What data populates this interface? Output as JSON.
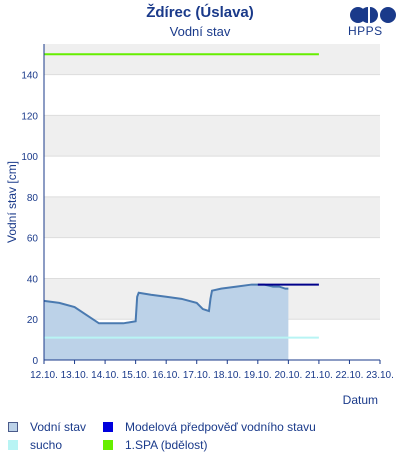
{
  "header": {
    "title": "Ždírec (Úslava)",
    "subtitle": "Vodní stav",
    "logo_text": "HPPS"
  },
  "colors": {
    "stage": "#4a7ab0",
    "stage_fill": "#bcd2e8",
    "forecast": "#00008b",
    "drought": "#b8f4f4",
    "spa1": "#66ee00",
    "band": "#efefef",
    "axis": "#1a3a8a"
  },
  "chart_data": {
    "type": "line",
    "xlabel": "Datum",
    "ylabel": "Vodní stav [cm]",
    "ylim": [
      0,
      155
    ],
    "yticks": [
      0,
      20,
      40,
      60,
      80,
      100,
      120,
      140
    ],
    "x_tick_labels": [
      "12.10.",
      "13.10.",
      "14.10.",
      "15.10.",
      "16.10.",
      "17.10.",
      "18.10.",
      "19.10.",
      "20.10.",
      "21.10.",
      "22.10.",
      "23.10."
    ],
    "xlim_days": [
      0,
      11
    ],
    "series": [
      {
        "name": "Vodní stav",
        "x": [
          0,
          0.5,
          1.0,
          1.4,
          1.8,
          2.2,
          2.6,
          3.0,
          3.05,
          3.1,
          3.5,
          4.0,
          4.5,
          5.0,
          5.2,
          5.4,
          5.45,
          5.5,
          5.8,
          6.3,
          6.8,
          7.2,
          7.5,
          7.7,
          7.9,
          8.0
        ],
        "y": [
          29,
          28,
          26,
          22,
          18,
          18,
          18,
          19,
          31,
          33,
          32,
          31,
          30,
          28,
          25,
          24,
          30,
          34,
          35,
          36,
          37,
          37,
          36,
          36,
          35,
          35
        ]
      },
      {
        "name": "Modelová předpověď vodního stavu",
        "x": [
          7.0,
          9.0
        ],
        "y": [
          37,
          37
        ]
      },
      {
        "name": "sucho",
        "x": [
          0,
          9.0
        ],
        "y": [
          11,
          11
        ]
      },
      {
        "name": "1.SPA (bdělost)",
        "x": [
          0,
          9.0
        ],
        "y": [
          150,
          150
        ]
      }
    ],
    "grid": "horizontal-bands",
    "legend_position": "bottom"
  },
  "legend": [
    {
      "label": "Vodní stav"
    },
    {
      "label": "Modelová předpověď vodního stavu"
    },
    {
      "label": "sucho"
    },
    {
      "label": "1.SPA (bdělost)"
    }
  ]
}
